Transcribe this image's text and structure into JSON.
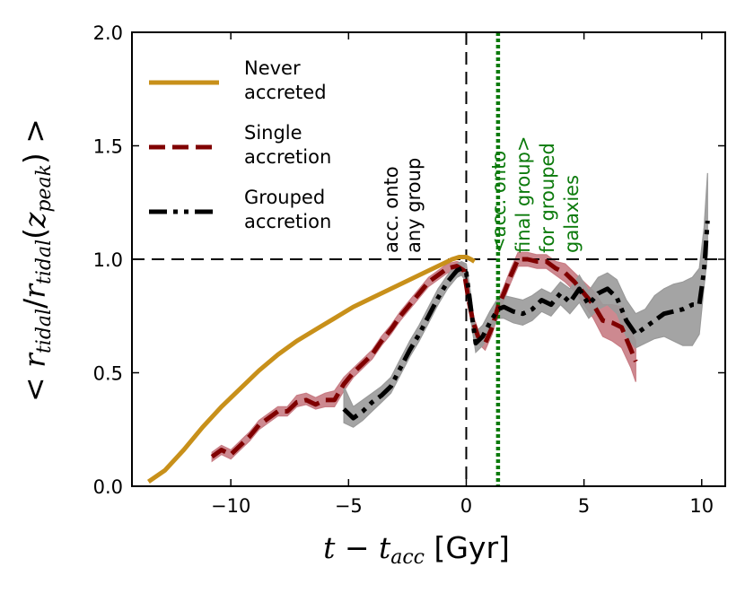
{
  "chart_data": {
    "type": "line",
    "title": "",
    "xlabel": {
      "var": "t",
      "minus": " − ",
      "sub_var": "t",
      "sub": "acc",
      "unit": " [Gyr]"
    },
    "ylabel": {
      "open": "< ",
      "num": "r",
      "num_sub": "tidal",
      "slash": "/",
      "den": "r",
      "den_sub": "tidal",
      "arg_open": "(",
      "arg": "z",
      "arg_sub": "peak",
      "arg_close": ")",
      "close": " >"
    },
    "xlim": [
      -14.2,
      11.0
    ],
    "ylim": [
      0.0,
      2.0
    ],
    "xticks": [
      {
        "v": -10,
        "label": "−10"
      },
      {
        "v": -5,
        "label": "−5"
      },
      {
        "v": 0,
        "label": "0"
      },
      {
        "v": 5,
        "label": "5"
      },
      {
        "v": 10,
        "label": "10"
      }
    ],
    "yticks": [
      {
        "v": 0.0,
        "label": "0.0"
      },
      {
        "v": 0.5,
        "label": "0.5"
      },
      {
        "v": 1.0,
        "label": "1.0"
      },
      {
        "v": 1.5,
        "label": "1.5"
      },
      {
        "v": 2.0,
        "label": "2.0"
      }
    ],
    "colors": {
      "never": "#c8901a",
      "single": "#800000",
      "single_band": "#c87c84",
      "grouped": "#000000",
      "grouped_band": "#9a9a9a",
      "green": "#0b7a0b"
    },
    "reference_lines": [
      {
        "axis": "y",
        "value": 1.0,
        "style": "dashed",
        "color": "#000000"
      },
      {
        "axis": "x",
        "value": 0.0,
        "style": "dashed",
        "color": "#000000"
      },
      {
        "axis": "x",
        "value": 1.35,
        "style": "dotted",
        "color": "#0b7a0b"
      }
    ],
    "annotations": [
      {
        "lines": [
          "acc. onto",
          "any group"
        ],
        "color": "#000000",
        "rotation": -90
      },
      {
        "lines": [
          "<acc. onto",
          "final group>",
          "for grouped",
          "galaxies"
        ],
        "color": "#0b7a0b",
        "rotation": -90
      }
    ],
    "legend": {
      "placement": "upper-left",
      "entries": [
        {
          "name": "never",
          "lines": [
            "Never",
            "accreted"
          ],
          "style": "solid"
        },
        {
          "name": "single",
          "lines": [
            "Single",
            "accretion"
          ],
          "style": "dashed"
        },
        {
          "name": "grouped",
          "lines": [
            "Grouped",
            "accretion"
          ],
          "style": "dashdotdot"
        }
      ]
    },
    "series": [
      {
        "name": "Never accreted",
        "key": "never",
        "style": "solid",
        "x": [
          -13.5,
          -12.8,
          -12.0,
          -11.2,
          -10.4,
          -9.6,
          -8.8,
          -8.0,
          -7.2,
          -6.4,
          -5.6,
          -4.8,
          -4.0,
          -3.2,
          -2.4,
          -1.6,
          -1.0,
          -0.6,
          -0.3,
          0.0,
          0.2,
          0.35
        ],
        "y": [
          0.02,
          0.07,
          0.16,
          0.26,
          0.35,
          0.43,
          0.51,
          0.58,
          0.64,
          0.69,
          0.74,
          0.79,
          0.83,
          0.87,
          0.91,
          0.95,
          0.98,
          1.0,
          1.01,
          1.01,
          1.0,
          0.99
        ]
      },
      {
        "name": "Single accretion",
        "key": "single",
        "style": "dashed",
        "x": [
          -10.8,
          -10.4,
          -10.0,
          -9.6,
          -9.2,
          -8.8,
          -8.4,
          -8.0,
          -7.6,
          -7.2,
          -6.8,
          -6.4,
          -6.0,
          -5.6,
          -5.2,
          -4.8,
          -4.4,
          -4.0,
          -3.6,
          -3.2,
          -2.8,
          -2.4,
          -2.0,
          -1.6,
          -1.2,
          -0.8,
          -0.4,
          -0.1,
          0.1,
          0.3,
          0.5,
          0.8,
          1.1,
          1.35,
          1.6,
          1.9,
          2.2,
          2.6,
          3.0,
          3.4,
          3.8,
          4.2,
          4.6,
          5.0,
          5.4,
          5.8,
          6.2,
          6.6,
          7.0,
          7.2
        ],
        "y": [
          0.13,
          0.16,
          0.14,
          0.18,
          0.22,
          0.27,
          0.3,
          0.33,
          0.33,
          0.37,
          0.38,
          0.36,
          0.38,
          0.38,
          0.45,
          0.5,
          0.54,
          0.58,
          0.64,
          0.69,
          0.75,
          0.8,
          0.85,
          0.9,
          0.93,
          0.96,
          0.97,
          0.95,
          0.82,
          0.72,
          0.66,
          0.63,
          0.7,
          0.79,
          0.85,
          0.93,
          1.0,
          1.0,
          0.99,
          0.99,
          0.96,
          0.94,
          0.9,
          0.85,
          0.8,
          0.73,
          0.72,
          0.7,
          0.6,
          0.55
        ]
      },
      {
        "name": "Grouped accretion",
        "key": "grouped",
        "style": "dashdotdot",
        "x": [
          -5.2,
          -4.8,
          -4.4,
          -4.0,
          -3.6,
          -3.2,
          -2.8,
          -2.4,
          -2.0,
          -1.6,
          -1.2,
          -0.8,
          -0.4,
          -0.2,
          0.0,
          0.2,
          0.4,
          0.7,
          1.0,
          1.35,
          1.6,
          2.0,
          2.4,
          2.8,
          3.2,
          3.6,
          4.0,
          4.4,
          4.8,
          5.2,
          5.6,
          6.0,
          6.4,
          6.8,
          7.2,
          7.6,
          8.0,
          8.4,
          8.8,
          9.2,
          9.6,
          9.9,
          10.1,
          10.25
        ],
        "y": [
          0.34,
          0.3,
          0.33,
          0.37,
          0.4,
          0.44,
          0.52,
          0.6,
          0.67,
          0.75,
          0.83,
          0.9,
          0.95,
          0.96,
          0.94,
          0.78,
          0.63,
          0.66,
          0.72,
          0.78,
          0.79,
          0.77,
          0.76,
          0.78,
          0.82,
          0.8,
          0.85,
          0.81,
          0.87,
          0.8,
          0.85,
          0.87,
          0.83,
          0.73,
          0.67,
          0.7,
          0.73,
          0.76,
          0.77,
          0.78,
          0.8,
          0.8,
          0.95,
          1.17
        ]
      }
    ],
    "bands": [
      {
        "key": "single",
        "x": [
          -10.8,
          -10.4,
          -10.0,
          -9.6,
          -9.2,
          -8.8,
          -8.4,
          -8.0,
          -7.6,
          -7.2,
          -6.8,
          -6.4,
          -6.0,
          -5.6,
          -5.2,
          -4.8,
          -4.4,
          -4.0,
          -3.6,
          -3.2,
          -2.8,
          -2.4,
          -2.0,
          -1.6,
          -1.2,
          -0.8,
          -0.4,
          -0.1,
          0.1,
          0.3,
          0.5,
          0.8,
          1.1,
          1.35,
          1.6,
          1.9,
          2.2,
          2.6,
          3.0,
          3.4,
          3.8,
          4.2,
          4.6,
          5.0,
          5.4,
          5.8,
          6.2,
          6.6,
          7.0,
          7.2
        ],
        "low": [
          0.11,
          0.14,
          0.12,
          0.16,
          0.2,
          0.25,
          0.28,
          0.31,
          0.31,
          0.35,
          0.36,
          0.34,
          0.35,
          0.35,
          0.42,
          0.48,
          0.52,
          0.56,
          0.62,
          0.67,
          0.73,
          0.78,
          0.83,
          0.88,
          0.91,
          0.94,
          0.95,
          0.92,
          0.78,
          0.69,
          0.63,
          0.6,
          0.67,
          0.76,
          0.82,
          0.9,
          0.97,
          0.97,
          0.96,
          0.96,
          0.93,
          0.9,
          0.86,
          0.8,
          0.74,
          0.66,
          0.64,
          0.61,
          0.52,
          0.46
        ],
        "high": [
          0.15,
          0.18,
          0.16,
          0.2,
          0.24,
          0.29,
          0.32,
          0.35,
          0.35,
          0.4,
          0.41,
          0.39,
          0.41,
          0.42,
          0.48,
          0.52,
          0.56,
          0.6,
          0.66,
          0.71,
          0.77,
          0.82,
          0.87,
          0.92,
          0.95,
          0.98,
          0.99,
          0.98,
          0.86,
          0.75,
          0.69,
          0.66,
          0.73,
          0.82,
          0.88,
          0.96,
          1.03,
          1.03,
          1.02,
          1.02,
          0.99,
          0.98,
          0.94,
          0.9,
          0.86,
          0.8,
          0.8,
          0.79,
          0.68,
          0.64
        ]
      },
      {
        "key": "grouped",
        "x": [
          -5.2,
          -4.8,
          -4.4,
          -4.0,
          -3.6,
          -3.2,
          -2.8,
          -2.4,
          -2.0,
          -1.6,
          -1.2,
          -0.8,
          -0.4,
          -0.2,
          0.0,
          0.2,
          0.4,
          0.7,
          1.0,
          1.35,
          1.6,
          2.0,
          2.4,
          2.8,
          3.2,
          3.6,
          4.0,
          4.4,
          4.8,
          5.2,
          5.6,
          6.0,
          6.4,
          6.8,
          7.2,
          7.6,
          8.0,
          8.4,
          8.8,
          9.2,
          9.6,
          9.9,
          10.1,
          10.25
        ],
        "low": [
          0.28,
          0.26,
          0.29,
          0.33,
          0.37,
          0.41,
          0.49,
          0.57,
          0.64,
          0.72,
          0.8,
          0.87,
          0.92,
          0.93,
          0.9,
          0.73,
          0.59,
          0.62,
          0.68,
          0.74,
          0.74,
          0.72,
          0.71,
          0.73,
          0.77,
          0.75,
          0.8,
          0.76,
          0.81,
          0.74,
          0.78,
          0.8,
          0.76,
          0.66,
          0.61,
          0.63,
          0.65,
          0.66,
          0.64,
          0.62,
          0.62,
          0.67,
          0.88,
          1.02
        ],
        "high": [
          0.44,
          0.35,
          0.38,
          0.41,
          0.44,
          0.48,
          0.56,
          0.64,
          0.71,
          0.79,
          0.87,
          0.93,
          0.98,
          0.99,
          0.98,
          0.84,
          0.68,
          0.71,
          0.77,
          0.83,
          0.84,
          0.83,
          0.82,
          0.84,
          0.87,
          0.85,
          0.9,
          0.87,
          0.93,
          0.86,
          0.92,
          0.94,
          0.91,
          0.82,
          0.76,
          0.78,
          0.84,
          0.87,
          0.89,
          0.9,
          0.92,
          0.96,
          1.14,
          1.38
        ]
      }
    ]
  }
}
